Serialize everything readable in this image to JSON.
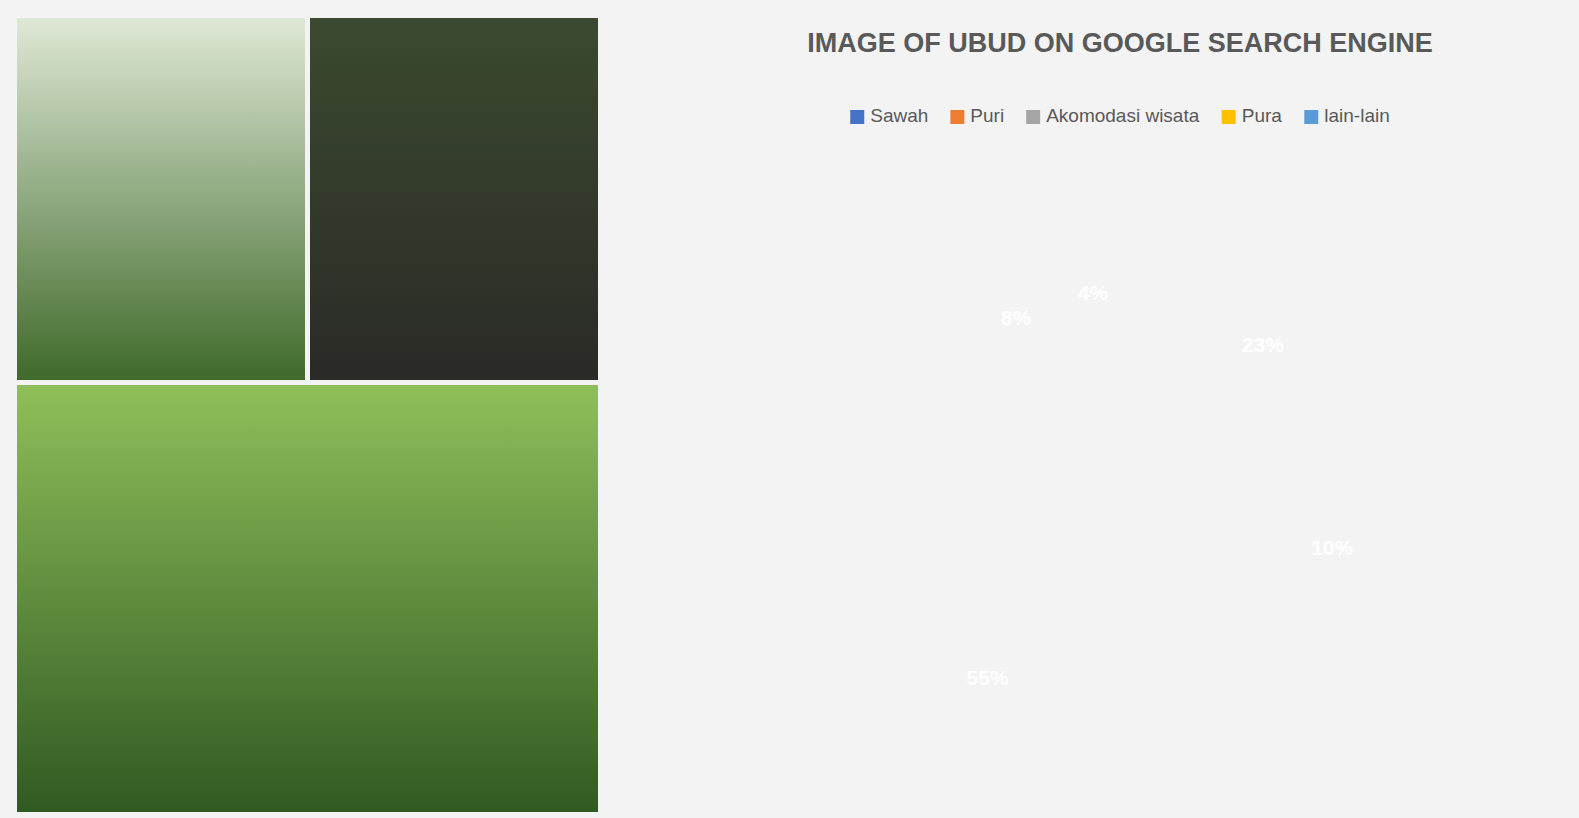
{
  "chart_data": {
    "type": "donut",
    "title": "IMAGE OF UBUD ON GOOGLE SEARCH ENGINE",
    "categories": [
      "Sawah",
      "Puri",
      "Akomodasi wisata",
      "Pura",
      "lain-lain"
    ],
    "values": [
      23,
      10,
      55,
      8,
      4
    ],
    "value_labels": [
      "23%",
      "10%",
      "55%",
      "8%",
      "4%"
    ],
    "colors": [
      "#4472c4",
      "#ed7d31",
      "#a5a5a5",
      "#ffc000",
      "#5b9bd5"
    ],
    "legend": "top",
    "data_labels": true
  }
}
